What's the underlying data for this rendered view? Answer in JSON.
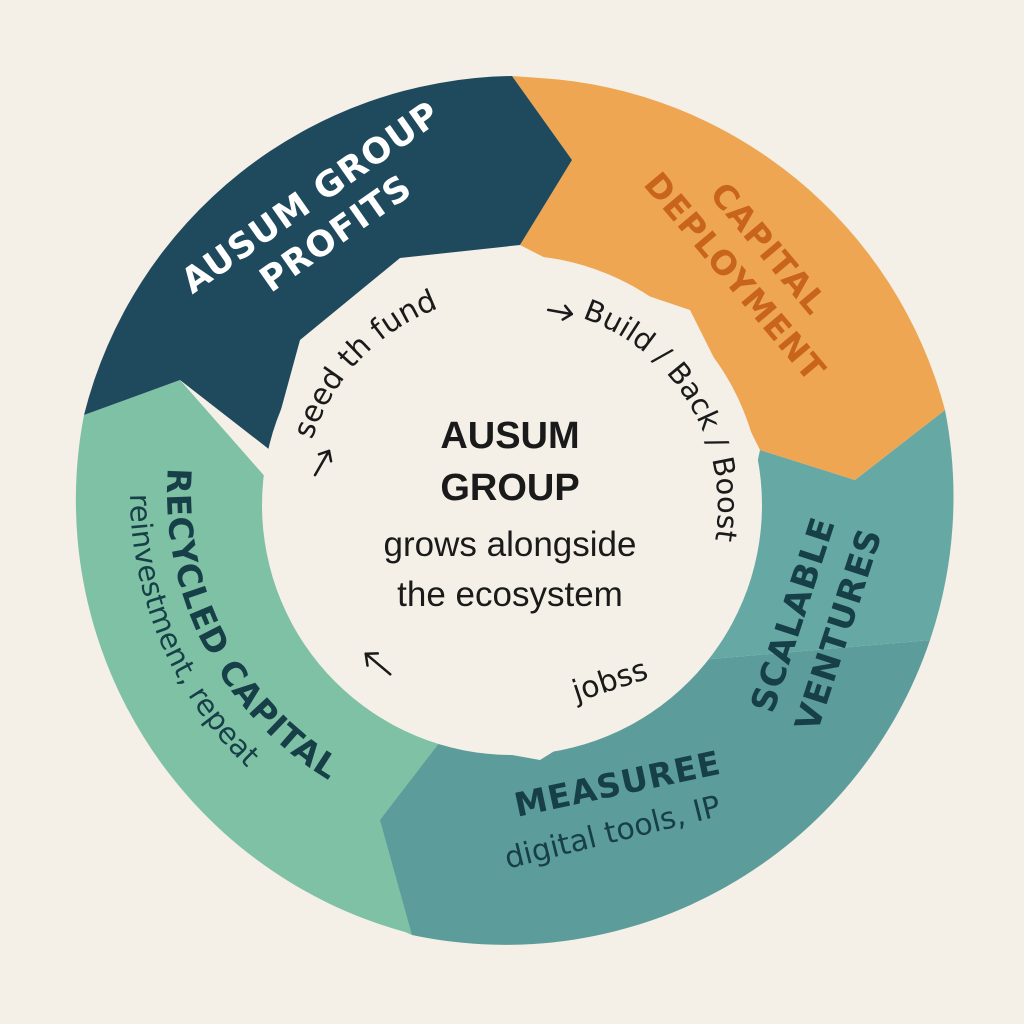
{
  "colors": {
    "background": "#f4efe7",
    "profits": "#1f4a5d",
    "deployment": "#eea653",
    "deployment_text": "#c8641c",
    "ventures": "#66a9a4",
    "measure": "#5c9d9b",
    "recycled": "#7fc1a5",
    "dark_text": "#163f47",
    "center_fill": "#f4efe7",
    "center_text": "#1a1a1a"
  },
  "segments": {
    "profits": {
      "line1": "AUSUM GROUP",
      "line2": "PROFITS"
    },
    "deployment": {
      "line1": "CAPITAL",
      "line2": "DEPLOYMENT"
    },
    "ventures": {
      "line1": "SCALABLE",
      "line2": "VENTURES"
    },
    "measure": {
      "title": "MEASUREE",
      "sub": "digital tools, IP"
    },
    "recycled": {
      "title": "RECYCLED CAPITAL",
      "sub": "reinvestment, repeat"
    }
  },
  "inner": {
    "seed": "seed th fund",
    "build": "Build / Back / Boost",
    "jobs": "jobss"
  },
  "center": {
    "line1": "AUSUM",
    "line2": "GROUP",
    "line3": "grows alongside",
    "line4": "the ecosystem"
  }
}
